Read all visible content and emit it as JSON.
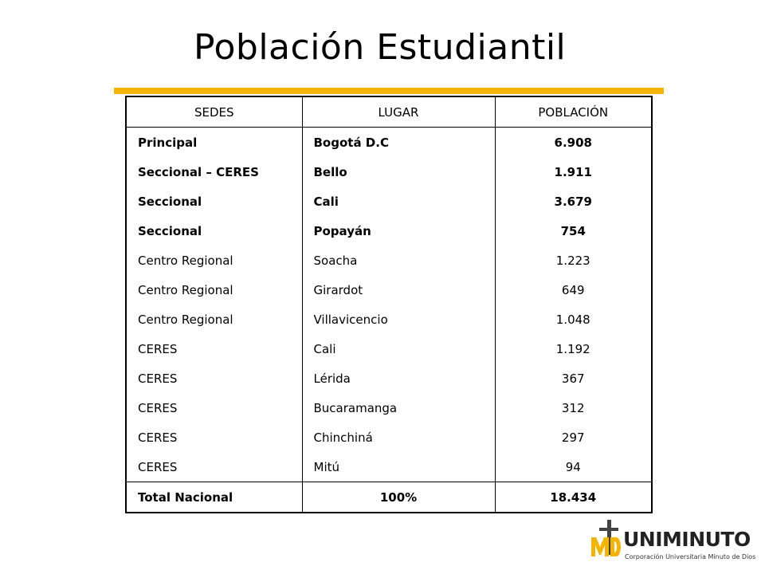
{
  "title": "Población Estudiantil",
  "colors": {
    "accent": "#f5b400",
    "text": "#000000",
    "background": "#ffffff"
  },
  "table": {
    "headers": [
      "SEDES",
      "LUGAR",
      "POBLACIÓN"
    ],
    "rows": [
      {
        "sede": "Principal",
        "lugar": "Bogotá D.C",
        "poblacion": "6.908",
        "bold": true
      },
      {
        "sede": "Seccional – CERES",
        "lugar": "Bello",
        "poblacion": "1.911",
        "bold": true
      },
      {
        "sede": "Seccional",
        "lugar": "Cali",
        "poblacion": "3.679",
        "bold": true
      },
      {
        "sede": "Seccional",
        "lugar": "Popayán",
        "poblacion": "754",
        "bold": true
      },
      {
        "sede": "Centro Regional",
        "lugar": "Soacha",
        "poblacion": "1.223",
        "bold": false
      },
      {
        "sede": "Centro Regional",
        "lugar": "Girardot",
        "poblacion": "649",
        "bold": false
      },
      {
        "sede": "Centro Regional",
        "lugar": "Villavicencio",
        "poblacion": "1.048",
        "bold": false
      },
      {
        "sede": "CERES",
        "lugar": "Cali",
        "poblacion": "1.192",
        "bold": false
      },
      {
        "sede": "CERES",
        "lugar": "Lérida",
        "poblacion": "367",
        "bold": false
      },
      {
        "sede": "CERES",
        "lugar": "Bucaramanga",
        "poblacion": "312",
        "bold": false
      },
      {
        "sede": "CERES",
        "lugar": "Chinchiná",
        "poblacion": "297",
        "bold": false
      },
      {
        "sede": "CERES",
        "lugar": "Mitú",
        "poblacion": "94",
        "bold": false
      }
    ],
    "total": {
      "label": "Total Nacional",
      "percent": "100%",
      "value": "18.434"
    }
  },
  "logo": {
    "monogram": "MD",
    "name": "UNIMINUTO",
    "subtitle": "Corporación Universitaria Minuto de Dios"
  }
}
